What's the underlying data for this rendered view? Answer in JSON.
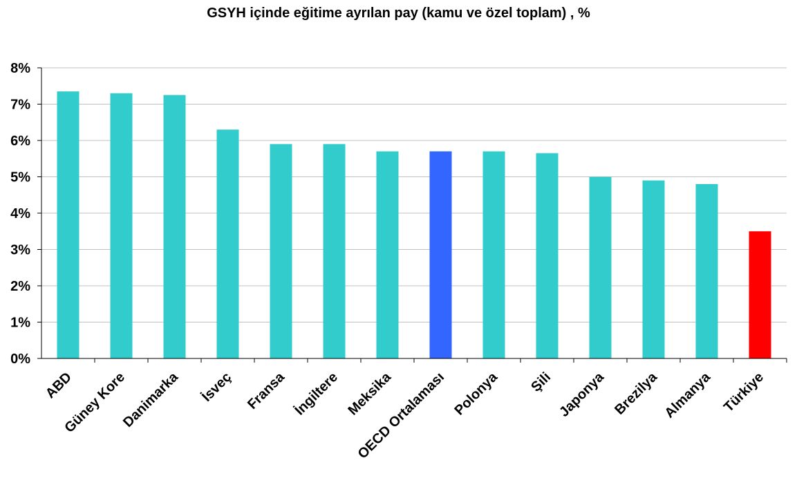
{
  "chart_data": {
    "type": "bar",
    "title": "GSYH içinde eğitime ayrılan pay (kamu ve özel toplam) , %",
    "xlabel": "",
    "ylabel": "",
    "ylim": [
      0,
      8
    ],
    "y_ticks": [
      0,
      1,
      2,
      3,
      4,
      5,
      6,
      7,
      8
    ],
    "y_tick_suffix": "%",
    "grid": true,
    "legend": "none",
    "categories": [
      "ABD",
      "Güney Kore",
      "Danimarka",
      "İsveç",
      "Fransa",
      "İngiltere",
      "Meksika",
      "OECD Ortalaması",
      "Polonya",
      "Şili",
      "Japonya",
      "Brezilya",
      "Almanya",
      "Türkiye"
    ],
    "values": [
      7.35,
      7.3,
      7.25,
      6.3,
      5.9,
      5.9,
      5.7,
      5.7,
      5.7,
      5.65,
      5.0,
      4.9,
      4.8,
      3.5
    ],
    "bar_colors": [
      "#33CCCC",
      "#33CCCC",
      "#33CCCC",
      "#33CCCC",
      "#33CCCC",
      "#33CCCC",
      "#33CCCC",
      "#3366FF",
      "#33CCCC",
      "#33CCCC",
      "#33CCCC",
      "#33CCCC",
      "#33CCCC",
      "#FF0000"
    ]
  }
}
